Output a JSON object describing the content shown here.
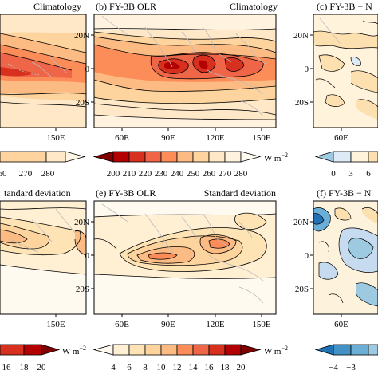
{
  "figure": {
    "units": "W m",
    "units_exp": "−2"
  },
  "chart_data": [
    {
      "id": "a",
      "type": "heatmap",
      "title": "",
      "right_label": "Climatology",
      "x_ticks": [
        "150E"
      ],
      "y_ticks": [],
      "colorbar_ticks": [
        "60",
        "270",
        "280"
      ],
      "colorbar_colors": [
        "#fee8c8",
        "#fdd49e",
        "#fff6e5"
      ],
      "field": "climatology"
    },
    {
      "id": "b",
      "type": "heatmap",
      "title": "(b) FY-3B OLR",
      "right_label": "Climatology",
      "x_ticks": [
        "60E",
        "90E",
        "120E",
        "150E"
      ],
      "y_ticks": [
        "20N",
        "0",
        "20S"
      ],
      "colorbar_ticks": [
        "200",
        "210",
        "220",
        "230",
        "240",
        "250",
        "260",
        "270",
        "280"
      ],
      "colorbar_colors": [
        "#7f0000",
        "#b30000",
        "#d7301f",
        "#ef6548",
        "#fc8d59",
        "#fdbb84",
        "#fdd49e",
        "#fee8c8",
        "#fff3e0",
        "#fffaf2"
      ],
      "field": "climatology"
    },
    {
      "id": "c",
      "type": "heatmap",
      "title": "(c) FY-3B − N",
      "right_label": "",
      "x_ticks": [
        "60E"
      ],
      "y_ticks": [
        "20N",
        "0",
        "20S"
      ],
      "colorbar_ticks": [
        "0",
        "3",
        "6"
      ],
      "colorbar_colors": [
        "#9ecae1",
        "#deebf7",
        "#fff3dc",
        "#fde0b0"
      ],
      "field": "difference"
    },
    {
      "id": "d",
      "type": "heatmap",
      "title": "",
      "right_label": "tandard deviation",
      "x_ticks": [
        "150E"
      ],
      "y_ticks": [],
      "colorbar_ticks": [
        "16",
        "18",
        "20"
      ],
      "colorbar_colors": [
        "#d7301f",
        "#b30000",
        "#7f0000"
      ],
      "field": "stddev"
    },
    {
      "id": "e",
      "type": "heatmap",
      "title": "(e) FY-3B OLR",
      "right_label": "Standard deviation",
      "x_ticks": [
        "60E",
        "90E",
        "120E",
        "150E"
      ],
      "y_ticks": [
        "20N",
        "0",
        "20S"
      ],
      "colorbar_ticks": [
        "4",
        "6",
        "8",
        "10",
        "12",
        "14",
        "16",
        "18",
        "20"
      ],
      "colorbar_colors": [
        "#fffaf0",
        "#fff0d4",
        "#fee3b5",
        "#fdd49e",
        "#fdbb84",
        "#fc8d59",
        "#ef6548",
        "#d7301f",
        "#b30000",
        "#7f0000"
      ],
      "field": "stddev"
    },
    {
      "id": "f",
      "type": "heatmap",
      "title": "(f) FY-3B − N",
      "right_label": "",
      "x_ticks": [
        "60E"
      ],
      "y_ticks": [
        "20N",
        "0",
        "20S"
      ],
      "colorbar_ticks": [
        "−4",
        "−3"
      ],
      "colorbar_colors": [
        "#2171b5",
        "#4292c6",
        "#6baed6",
        "#9ecae1"
      ],
      "field": "difference"
    }
  ]
}
